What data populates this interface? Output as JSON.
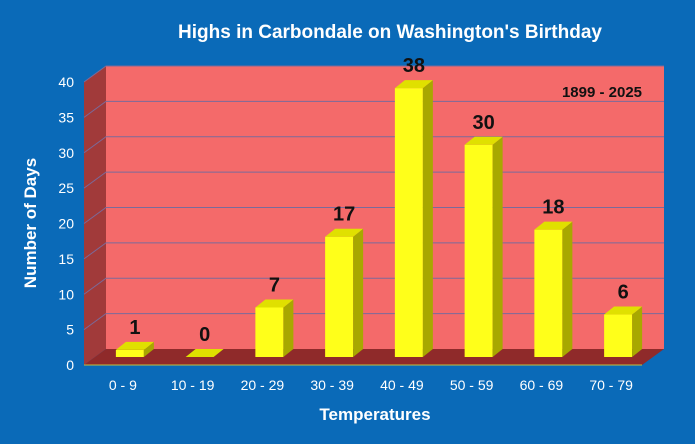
{
  "chart_data": {
    "type": "bar",
    "title": "Highs in Carbondale on Washington's Birthday",
    "xlabel": "Temperatures",
    "ylabel": "Number of Days",
    "annotation": "1899 - 2025",
    "categories": [
      "0 - 9",
      "10 - 19",
      "20 - 29",
      "30 - 39",
      "40 - 49",
      "50 - 59",
      "60 - 69",
      "70 - 79"
    ],
    "values": [
      1,
      0,
      7,
      17,
      38,
      30,
      18,
      6
    ],
    "ylim": [
      0,
      40
    ],
    "yticks": [
      0,
      5,
      10,
      15,
      20,
      25,
      30,
      35,
      40
    ],
    "grid": true,
    "legend": "none"
  },
  "colors": {
    "background": "#0a6ab8",
    "plot_back_wall": "#f46a6a",
    "plot_side_wall": "#a13a3a",
    "plot_floor": "#8f2a2a",
    "gridline": "#7b6a9a",
    "bar_front": "#ffff1a",
    "bar_top": "#e0e000",
    "bar_side": "#a8a800",
    "text_light": "#ffffff",
    "text_dark": "#111111"
  }
}
